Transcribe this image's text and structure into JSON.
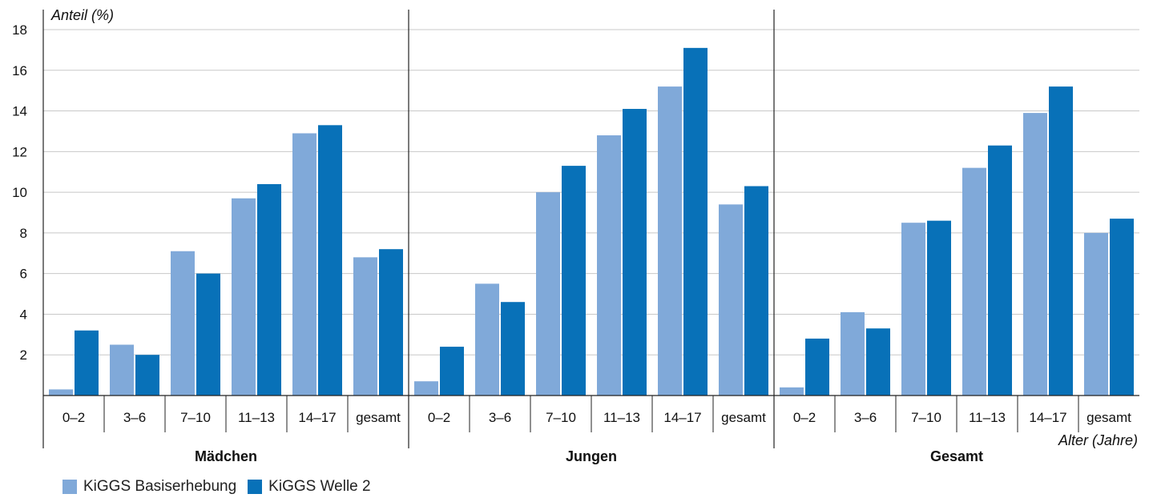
{
  "chart_data": {
    "type": "bar",
    "ylabel": "Anteil (%)",
    "xlabel": "Alter (Jahre)",
    "ylim": [
      0,
      18
    ],
    "yticks": [
      2,
      4,
      6,
      8,
      10,
      12,
      14,
      16,
      18
    ],
    "grid": true,
    "legend_position": "bottom-left",
    "categories": [
      "0–2",
      "3–6",
      "7–10",
      "11–13",
      "14–17",
      "gesamt"
    ],
    "groups": [
      {
        "name": "Mädchen",
        "series": [
          {
            "name": "KiGGS Basiserhebung",
            "values": [
              0.3,
              2.5,
              7.1,
              9.7,
              12.9,
              6.8
            ]
          },
          {
            "name": "KiGGS Welle 2",
            "values": [
              3.2,
              2.0,
              6.0,
              10.4,
              13.3,
              7.2
            ]
          }
        ]
      },
      {
        "name": "Jungen",
        "series": [
          {
            "name": "KiGGS Basiserhebung",
            "values": [
              0.7,
              5.5,
              10.0,
              12.8,
              15.2,
              9.4
            ]
          },
          {
            "name": "KiGGS Welle 2",
            "values": [
              2.4,
              4.6,
              11.3,
              14.1,
              17.1,
              10.3
            ]
          }
        ]
      },
      {
        "name": "Gesamt",
        "series": [
          {
            "name": "KiGGS Basiserhebung",
            "values": [
              0.4,
              4.1,
              8.5,
              11.2,
              13.9,
              8.0
            ]
          },
          {
            "name": "KiGGS Welle 2",
            "values": [
              2.8,
              3.3,
              8.6,
              12.3,
              15.2,
              8.7
            ]
          }
        ]
      }
    ],
    "legend": [
      {
        "name": "KiGGS Basiserhebung",
        "color": "#80a9d9"
      },
      {
        "name": "KiGGS Welle 2",
        "color": "#0871b8"
      }
    ]
  }
}
